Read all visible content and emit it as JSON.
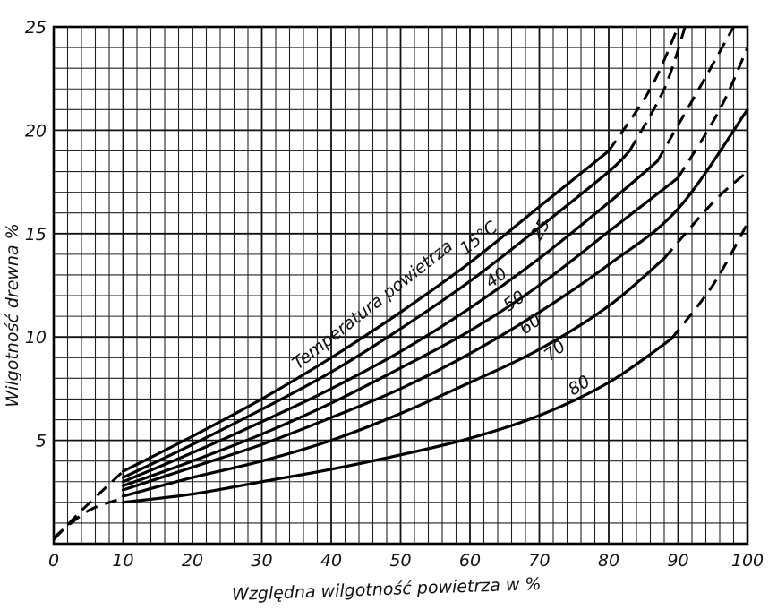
{
  "chart_data": {
    "type": "line",
    "title": "",
    "xlabel": "Względna wilgotność powietrza w %",
    "ylabel": "Wilgotność drewna %",
    "xlim": [
      0,
      100
    ],
    "ylim": [
      0,
      25
    ],
    "x_ticks": [
      "0",
      "10",
      "20",
      "30",
      "40",
      "50",
      "60",
      "70",
      "80",
      "90",
      "100"
    ],
    "y_ticks": [
      "5",
      "10",
      "15",
      "20",
      "25"
    ],
    "grid": true,
    "annotation": "Temperatura powietrza",
    "series": [
      {
        "name": "15°C",
        "label": "15°C",
        "solid": [
          [
            10,
            3.5
          ],
          [
            20,
            5.2
          ],
          [
            30,
            7.0
          ],
          [
            40,
            9.0
          ],
          [
            50,
            11.2
          ],
          [
            60,
            13.6
          ],
          [
            70,
            16.3
          ],
          [
            80,
            19.0
          ]
        ],
        "dashed_low": [
          [
            0,
            0.2
          ],
          [
            4,
            1.6
          ],
          [
            10,
            3.5
          ]
        ],
        "dashed_high": [
          [
            80,
            19.0
          ],
          [
            86,
            22.0
          ],
          [
            90,
            25.0
          ]
        ]
      },
      {
        "name": "25",
        "label": "25",
        "solid": [
          [
            10,
            3.2
          ],
          [
            20,
            4.8
          ],
          [
            30,
            6.5
          ],
          [
            40,
            8.3
          ],
          [
            50,
            10.4
          ],
          [
            60,
            12.7
          ],
          [
            70,
            15.3
          ],
          [
            80,
            18.0
          ],
          [
            83,
            19.0
          ]
        ],
        "dashed_high": [
          [
            83,
            19.0
          ],
          [
            88,
            22.0
          ],
          [
            91,
            25.0
          ]
        ]
      },
      {
        "name": "40",
        "label": "40",
        "solid": [
          [
            10,
            3.0
          ],
          [
            20,
            4.4
          ],
          [
            30,
            5.9
          ],
          [
            40,
            7.5
          ],
          [
            50,
            9.3
          ],
          [
            60,
            11.4
          ],
          [
            70,
            13.8
          ],
          [
            80,
            16.5
          ],
          [
            87,
            18.5
          ]
        ],
        "dashed_high": [
          [
            87,
            18.5
          ],
          [
            93,
            22.0
          ],
          [
            98,
            25.0
          ]
        ]
      },
      {
        "name": "50",
        "label": "50",
        "solid": [
          [
            10,
            2.8
          ],
          [
            20,
            4.0
          ],
          [
            30,
            5.3
          ],
          [
            40,
            6.8
          ],
          [
            50,
            8.5
          ],
          [
            60,
            10.3
          ],
          [
            70,
            12.5
          ],
          [
            80,
            15.1
          ],
          [
            90,
            17.7
          ]
        ],
        "dashed_high": [
          [
            90,
            17.7
          ],
          [
            96,
            21.0
          ],
          [
            100,
            24.0
          ]
        ]
      },
      {
        "name": "60",
        "label": "60",
        "solid": [
          [
            10,
            2.6
          ],
          [
            20,
            3.7
          ],
          [
            30,
            4.8
          ],
          [
            40,
            6.1
          ],
          [
            50,
            7.5
          ],
          [
            60,
            9.2
          ],
          [
            70,
            11.2
          ],
          [
            80,
            13.5
          ],
          [
            90,
            16.2
          ],
          [
            100,
            21.0
          ]
        ]
      },
      {
        "name": "70",
        "label": "70",
        "solid": [
          [
            10,
            2.3
          ],
          [
            20,
            3.2
          ],
          [
            30,
            4.0
          ],
          [
            40,
            5.0
          ],
          [
            50,
            6.3
          ],
          [
            60,
            7.8
          ],
          [
            70,
            9.4
          ],
          [
            80,
            11.5
          ],
          [
            88,
            13.8
          ]
        ],
        "dashed_high": [
          [
            88,
            13.8
          ],
          [
            95,
            16.5
          ],
          [
            100,
            18.0
          ]
        ]
      },
      {
        "name": "80",
        "label": "80",
        "solid": [
          [
            10,
            2.0
          ],
          [
            20,
            2.4
          ],
          [
            30,
            3.0
          ],
          [
            40,
            3.6
          ],
          [
            50,
            4.3
          ],
          [
            60,
            5.1
          ],
          [
            70,
            6.2
          ],
          [
            80,
            7.8
          ],
          [
            89,
            9.9
          ]
        ],
        "dashed_high": [
          [
            89,
            9.9
          ],
          [
            95,
            12.5
          ],
          [
            100,
            15.5
          ]
        ]
      }
    ],
    "extra_dashed": [
      [
        0,
        0.3
      ],
      [
        5,
        1.6
      ],
      [
        10,
        2.2
      ]
    ]
  }
}
